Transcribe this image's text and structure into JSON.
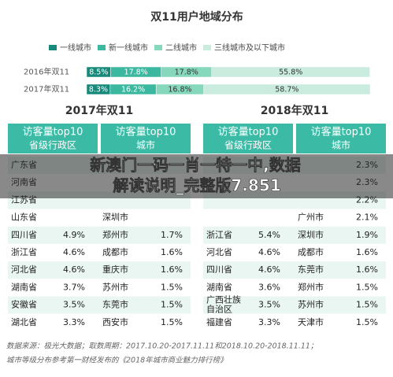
{
  "chart_data": {
    "type": "stacked_hbar",
    "title": "双11用户地域分布",
    "categories": [
      "2016年双11",
      "2017年双11"
    ],
    "series": [
      {
        "name": "一线城市",
        "color": "#17897a",
        "values": [
          8.5,
          8.3
        ],
        "value_labels": [
          "8.5%",
          "8.3%"
        ]
      },
      {
        "name": "新一线城市",
        "color": "#3bb89f",
        "values": [
          17.8,
          16.2
        ],
        "value_labels": [
          "17.8%",
          "16.2%"
        ]
      },
      {
        "name": "二线城市",
        "color": "#86d8bc",
        "values": [
          17.8,
          16.8
        ],
        "value_labels": [
          "17.8%",
          "16.8%"
        ]
      },
      {
        "name": "三线城市及以下城市",
        "color": "#c9ecdf",
        "values": [
          55.8,
          58.7
        ],
        "value_labels": [
          "55.8%",
          "58.7%"
        ]
      }
    ],
    "xlim": [
      0,
      100
    ],
    "legend": "top"
  },
  "tables": [
    {
      "heading": "2017年双11",
      "columns": [
        [
          "访客量top10",
          "省级行政区"
        ],
        [
          "访客量top10",
          "城市"
        ]
      ],
      "rows": [
        {
          "province": "广东省"
        },
        {
          "province": "河南省"
        },
        {
          "province": "江苏省"
        },
        {
          "province": "山东省",
          "city": "深圳市"
        },
        {
          "province": "四川省",
          "province_share": "4.9%",
          "city": "郑州市",
          "city_share": "1.7%"
        },
        {
          "province": "浙江省",
          "province_share": "4.6%",
          "city": "成都市",
          "city_share": "1.6%"
        },
        {
          "province": "河北省",
          "province_share": "4.6%",
          "city": "重庆市",
          "city_share": "1.6%"
        },
        {
          "province": "湖南省",
          "province_share": "3.7%",
          "city": "苏州市",
          "city_share": "1.5%"
        },
        {
          "province": "安徽省",
          "province_share": "3.5%",
          "city": "东莞市",
          "city_share": "1.5%"
        },
        {
          "province": "湖北省",
          "province_share": "3.3%",
          "city": "西安市",
          "city_share": "1.5%"
        }
      ]
    },
    {
      "heading": "2018年双11",
      "columns": [
        [
          "访客量top10",
          "省级行政区"
        ],
        [
          "访客量top10",
          "城市"
        ]
      ],
      "rows": [
        {
          "city_share": "2.3%"
        },
        {
          "city_share": "2.3%"
        },
        {
          "city_share": "2.2%"
        },
        {
          "city": "广州市",
          "city_share": "2.1%"
        },
        {
          "province": "浙江省",
          "province_share": "5.4%",
          "city": "深圳市",
          "city_share": "1.9%"
        },
        {
          "province": "河北省",
          "province_share": "4.6%",
          "city": "成都市",
          "city_share": "1.6%"
        },
        {
          "province": "四川省",
          "province_share": "4.6%",
          "city": "东莞市",
          "city_share": "1.6%"
        },
        {
          "province": "湖南省",
          "province_share": "3.6%",
          "city": "郑州市",
          "city_share": "1.5%"
        },
        {
          "province": [
            "广西壮族",
            "自治区"
          ],
          "province_share": "3.5%",
          "city": "苏州市",
          "city_share": "1.5%"
        },
        {
          "province": "福建省",
          "province_share": "3.3%",
          "city": "天津市",
          "city_share": "1.5%"
        }
      ]
    }
  ],
  "overlay": [
    "新澳门一码一肖一特一中,数据",
    "解读说明_完整版7.851"
  ],
  "footnotes": [
    "数据来源：极光大数据；取数周期：2017.10.20-2017.11.11和2018.10.20-2018.11.11；",
    "城市等级分布参考第一财经发布的《2018年城市商业魅力排行榜》"
  ]
}
